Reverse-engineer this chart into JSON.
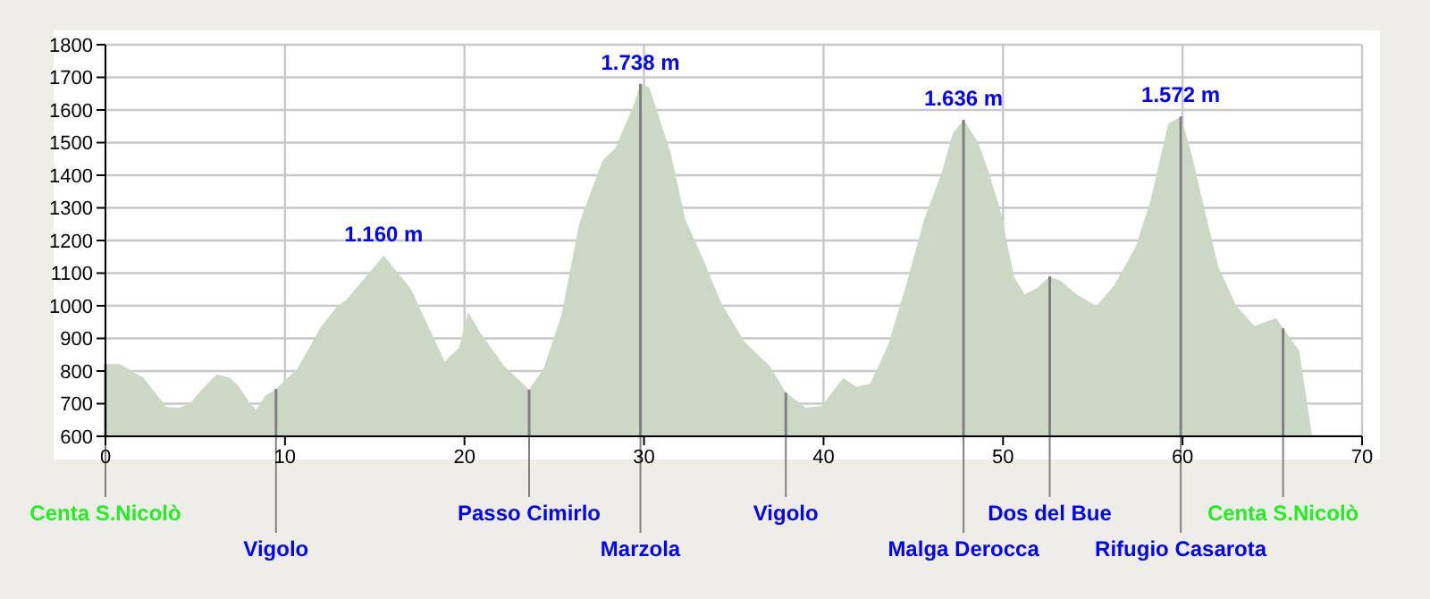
{
  "chart_data": {
    "type": "area",
    "x": [
      0,
      0.8,
      2.1,
      3.4,
      4.1,
      4.7,
      5.4,
      6.2,
      6.9,
      7.4,
      8.1,
      8.4,
      8.9,
      9.5,
      10.7,
      12.0,
      12.9,
      13.4,
      15.5,
      17.0,
      18.9,
      19.7,
      20.2,
      20.9,
      22.2,
      23.6,
      24.4,
      25.4,
      26.4,
      27.7,
      28.4,
      29.4,
      29.8,
      30.3,
      31.5,
      32.3,
      33.2,
      34.3,
      35.6,
      37.0,
      37.9,
      39.0,
      39.9,
      41.1,
      41.8,
      42.6,
      43.6,
      44.6,
      45.6,
      46.6,
      47.2,
      47.8,
      48.6,
      49.2,
      49.9,
      50.6,
      51.2,
      51.9,
      52.6,
      53.2,
      54.1,
      55.2,
      56.2,
      57.4,
      58.2,
      59.2,
      59.9,
      60.5,
      61.2,
      62.0,
      63.0,
      64.0,
      65.2,
      65.6,
      66.5,
      67.2,
      67.3
    ],
    "series": [
      {
        "color": "#ccd8c4",
        "values": [
          821,
          821,
          780,
          690,
          688,
          700,
          745,
          790,
          780,
          755,
          697,
          682,
          725,
          745,
          808,
          935,
          998,
          1017,
          1154,
          1053,
          829,
          871,
          980,
          916,
          816,
          743,
          807,
          971,
          1254,
          1446,
          1483,
          1611,
          1680,
          1669,
          1465,
          1264,
          1154,
          1008,
          889,
          816,
          734,
          688,
          693,
          779,
          752,
          761,
          880,
          1063,
          1264,
          1410,
          1529,
          1570,
          1502,
          1410,
          1282,
          1090,
          1035,
          1054,
          1090,
          1077,
          1035,
          999,
          1063,
          1182,
          1319,
          1557,
          1580,
          1465,
          1301,
          1118,
          999,
          938,
          962,
          931,
          862,
          606,
          600
        ]
      }
    ],
    "xlim": [
      0,
      70
    ],
    "xticks": [
      0,
      10,
      20,
      30,
      40,
      50,
      60,
      70
    ],
    "ylim": [
      600,
      1800
    ],
    "yticks": [
      600,
      700,
      800,
      900,
      1000,
      1100,
      1200,
      1300,
      1400,
      1500,
      1600,
      1700,
      1800
    ],
    "grid": true,
    "annotations": [
      {
        "text": "1.160 m",
        "x": 15.5,
        "y": 1154
      },
      {
        "text": "1.738 m",
        "x": 29.8,
        "y": 1680
      },
      {
        "text": "1.636 m",
        "x": 47.8,
        "y": 1570
      },
      {
        "text": "1.572 m",
        "x": 59.9,
        "y": 1580
      }
    ],
    "ref_lines": [
      {
        "axis": "x",
        "value": 0,
        "label": "Centa S.Nicolò",
        "color": "#808080"
      },
      {
        "axis": "x",
        "value": 9.5,
        "label": "Vigolo",
        "color": "#808080"
      },
      {
        "axis": "x",
        "value": 23.6,
        "label": "Passo Cimirlo",
        "color": "#808080"
      },
      {
        "axis": "x",
        "value": 29.8,
        "label": "Marzola",
        "color": "#808080"
      },
      {
        "axis": "x",
        "value": 37.9,
        "label": "Vigolo",
        "color": "#808080"
      },
      {
        "axis": "x",
        "value": 47.8,
        "label": "Malga Derocca",
        "color": "#808080"
      },
      {
        "axis": "x",
        "value": 52.6,
        "label": "Dos del Bue",
        "color": "#808080"
      },
      {
        "axis": "x",
        "value": 59.9,
        "label": "Rifugio Casarota",
        "color": "#808080"
      },
      {
        "axis": "x",
        "value": 65.6,
        "label": "Centa S.Nicolò",
        "color": "#808080"
      }
    ]
  }
}
